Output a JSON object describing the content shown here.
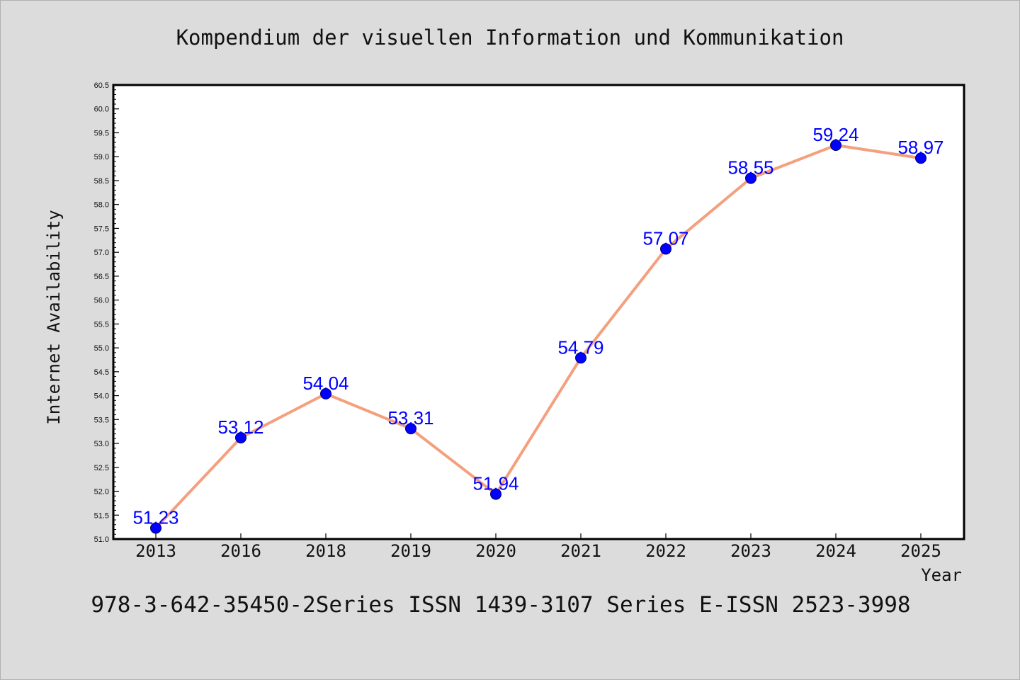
{
  "title": "Kompendium der visuellen Information und Kommunikation",
  "footer": "978-3-642-35450-2Series ISSN 1439-3107 Series E-ISSN 2523-3998",
  "colors": {
    "background": "#dcdcdc",
    "plot_background": "#ffffff",
    "line": "#f4a07e",
    "marker": "#0000ff",
    "data_label": "#0000ff"
  },
  "chart_data": {
    "type": "line",
    "title": "Kompendium der visuellen Information und Kommunikation",
    "xlabel": "Year",
    "ylabel": "Internet Availability",
    "categories": [
      "2013",
      "2016",
      "2018",
      "2019",
      "2020",
      "2021",
      "2022",
      "2023",
      "2024",
      "2025"
    ],
    "values": [
      51.23,
      53.12,
      54.04,
      53.31,
      51.94,
      54.79,
      57.07,
      58.55,
      59.24,
      58.97
    ],
    "data_labels": [
      "51.23",
      "53.12",
      "54.04",
      "53.31",
      "51.94",
      "54.79",
      "57.07",
      "58.55",
      "59.24",
      "58.97"
    ],
    "ylim": [
      51.0,
      60.5
    ],
    "yticks": [
      "51.0",
      "51.5",
      "52.0",
      "52.5",
      "53.0",
      "53.5",
      "54.0",
      "54.5",
      "55.0",
      "55.5",
      "56.0",
      "56.5",
      "57.0",
      "57.5",
      "58.0",
      "58.5",
      "59.0",
      "59.5",
      "60.0",
      "60.5"
    ],
    "grid": false,
    "legend": "none",
    "marker": "circle"
  }
}
